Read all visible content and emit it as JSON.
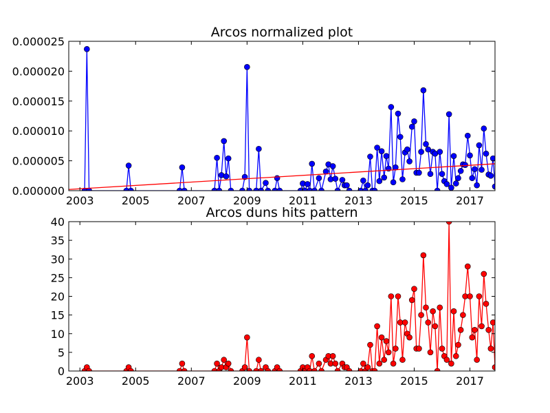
{
  "chart_data": [
    {
      "type": "line",
      "title": "Arcos normalized plot",
      "xlabel": "",
      "ylabel": "",
      "xlim": [
        2002.6,
        2017.9
      ],
      "ylim": [
        0,
        2.5e-05
      ],
      "x_ticks": [
        2003,
        2005,
        2007,
        2009,
        2011,
        2013,
        2015,
        2017
      ],
      "x_tick_labels": [
        "2003",
        "2005",
        "2007",
        "2009",
        "2011",
        "2013",
        "2015",
        "2017"
      ],
      "y_ticks": [
        0,
        5e-06,
        1e-05,
        1.5e-05,
        2e-05,
        2.5e-05
      ],
      "y_tick_labels": [
        "0.000000",
        "0.000005",
        "0.000010",
        "0.000015",
        "0.000020",
        "0.000025"
      ],
      "grid": false,
      "series": [
        {
          "color": "#0000ff",
          "marker": "circle",
          "points": [
            [
              2003.17,
              0
            ],
            [
              2003.25,
              2.37e-05
            ],
            [
              2003.33,
              0
            ],
            [
              2004.67,
              0
            ],
            [
              2004.75,
              4.2e-06
            ],
            [
              2004.83,
              0
            ],
            [
              2006.58,
              0
            ],
            [
              2006.67,
              3.9e-06
            ],
            [
              2006.75,
              0
            ],
            [
              2007.83,
              0
            ],
            [
              2007.92,
              5.5e-06
            ],
            [
              2008.0,
              0
            ],
            [
              2008.08,
              2.6e-06
            ],
            [
              2008.17,
              8.3e-06
            ],
            [
              2008.25,
              2.4e-06
            ],
            [
              2008.33,
              5.4e-06
            ],
            [
              2008.42,
              0
            ],
            [
              2008.83,
              0
            ],
            [
              2008.92,
              2.3e-06
            ],
            [
              2009.0,
              2.07e-05
            ],
            [
              2009.08,
              0
            ],
            [
              2009.33,
              0
            ],
            [
              2009.42,
              7e-06
            ],
            [
              2009.5,
              0
            ],
            [
              2009.67,
              1.3e-06
            ],
            [
              2009.75,
              0
            ],
            [
              2010.0,
              0
            ],
            [
              2010.08,
              2.1e-06
            ],
            [
              2010.17,
              0
            ],
            [
              2010.92,
              0
            ],
            [
              2011.0,
              1.2e-06
            ],
            [
              2011.08,
              0
            ],
            [
              2011.17,
              1.1e-06
            ],
            [
              2011.25,
              0
            ],
            [
              2011.33,
              4.5e-06
            ],
            [
              2011.42,
              0
            ],
            [
              2011.58,
              2.1e-06
            ],
            [
              2011.67,
              0
            ],
            [
              2011.83,
              3.2e-06
            ],
            [
              2011.92,
              4.4e-06
            ],
            [
              2012.0,
              1.9e-06
            ],
            [
              2012.08,
              4.1e-06
            ],
            [
              2012.17,
              2e-06
            ],
            [
              2012.25,
              0
            ],
            [
              2012.42,
              1.8e-06
            ],
            [
              2012.5,
              9e-07
            ],
            [
              2012.58,
              9e-07
            ],
            [
              2012.67,
              0
            ],
            [
              2013.08,
              0
            ],
            [
              2013.17,
              1.7e-06
            ],
            [
              2013.25,
              0
            ],
            [
              2013.33,
              9e-07
            ],
            [
              2013.42,
              5.7e-06
            ],
            [
              2013.5,
              0
            ],
            [
              2013.58,
              0
            ],
            [
              2013.67,
              7.2e-06
            ],
            [
              2013.75,
              1.6e-06
            ],
            [
              2013.83,
              6.6e-06
            ],
            [
              2013.92,
              2.2e-06
            ],
            [
              2014.0,
              5.8e-06
            ],
            [
              2014.08,
              3.7e-06
            ],
            [
              2014.17,
              1.4e-05
            ],
            [
              2014.25,
              1.4e-06
            ],
            [
              2014.33,
              3.9e-06
            ],
            [
              2014.42,
              1.29e-05
            ],
            [
              2014.5,
              9e-06
            ],
            [
              2014.58,
              1.9e-06
            ],
            [
              2014.67,
              6.4e-06
            ],
            [
              2014.75,
              6.9e-06
            ],
            [
              2014.83,
              4.9e-06
            ],
            [
              2014.92,
              1.07e-05
            ],
            [
              2015.0,
              1.16e-05
            ],
            [
              2015.08,
              3e-06
            ],
            [
              2015.17,
              3e-06
            ],
            [
              2015.25,
              6.5e-06
            ],
            [
              2015.33,
              1.68e-05
            ],
            [
              2015.42,
              7.8e-06
            ],
            [
              2015.5,
              6.9e-06
            ],
            [
              2015.58,
              2.8e-06
            ],
            [
              2015.67,
              6.5e-06
            ],
            [
              2015.75,
              6.2e-06
            ],
            [
              2015.83,
              0
            ],
            [
              2015.92,
              6.5e-06
            ],
            [
              2016.0,
              2.8e-06
            ],
            [
              2016.08,
              1.6e-06
            ],
            [
              2016.17,
              1.1e-06
            ],
            [
              2016.25,
              1.28e-05
            ],
            [
              2016.33,
              5e-07
            ],
            [
              2016.42,
              5.8e-06
            ],
            [
              2016.5,
              1.2e-06
            ],
            [
              2016.58,
              2.1e-06
            ],
            [
              2016.67,
              3.3e-06
            ],
            [
              2016.75,
              4.4e-06
            ],
            [
              2016.83,
              4.3e-06
            ],
            [
              2016.92,
              9.2e-06
            ],
            [
              2017.0,
              5.9e-06
            ],
            [
              2017.08,
              2.1e-06
            ],
            [
              2017.17,
              3.6e-06
            ],
            [
              2017.25,
              9e-07
            ],
            [
              2017.33,
              7.6e-06
            ],
            [
              2017.42,
              3.5e-06
            ],
            [
              2017.5,
              1.04e-05
            ],
            [
              2017.58,
              6.2e-06
            ],
            [
              2017.67,
              2.7e-06
            ],
            [
              2017.75,
              2.5e-06
            ],
            [
              2017.83,
              5.4e-06
            ],
            [
              2017.9,
              7e-07
            ]
          ]
        },
        {
          "color": "#ff0000",
          "marker": "none",
          "points": [
            [
              2002.6,
              2e-07
            ],
            [
              2017.9,
              4.5e-06
            ]
          ]
        }
      ]
    },
    {
      "type": "line",
      "title": "Arcos duns hits pattern",
      "xlabel": "",
      "ylabel": "",
      "xlim": [
        2002.6,
        2017.9
      ],
      "ylim": [
        0,
        40
      ],
      "x_ticks": [
        2003,
        2005,
        2007,
        2009,
        2011,
        2013,
        2015,
        2017
      ],
      "x_tick_labels": [
        "2003",
        "2005",
        "2007",
        "2009",
        "2011",
        "2013",
        "2015",
        "2017"
      ],
      "y_ticks": [
        0,
        5,
        10,
        15,
        20,
        25,
        30,
        35,
        40
      ],
      "y_tick_labels": [
        "0",
        "5",
        "10",
        "15",
        "20",
        "25",
        "30",
        "35",
        "40"
      ],
      "grid": false,
      "series": [
        {
          "color": "#ff0000",
          "marker": "circle",
          "points": [
            [
              2003.17,
              0
            ],
            [
              2003.25,
              1
            ],
            [
              2003.33,
              0
            ],
            [
              2004.67,
              0
            ],
            [
              2004.75,
              1
            ],
            [
              2004.83,
              0
            ],
            [
              2006.58,
              0
            ],
            [
              2006.67,
              2
            ],
            [
              2006.75,
              0
            ],
            [
              2007.83,
              0
            ],
            [
              2007.92,
              2
            ],
            [
              2008.0,
              0
            ],
            [
              2008.08,
              1
            ],
            [
              2008.17,
              3
            ],
            [
              2008.25,
              1
            ],
            [
              2008.33,
              2
            ],
            [
              2008.42,
              0
            ],
            [
              2008.83,
              0
            ],
            [
              2008.92,
              1
            ],
            [
              2009.0,
              9
            ],
            [
              2009.08,
              0
            ],
            [
              2009.33,
              0
            ],
            [
              2009.42,
              3
            ],
            [
              2009.5,
              0
            ],
            [
              2009.67,
              1
            ],
            [
              2009.75,
              0
            ],
            [
              2010.0,
              0
            ],
            [
              2010.08,
              1
            ],
            [
              2010.17,
              0
            ],
            [
              2010.92,
              0
            ],
            [
              2011.0,
              1
            ],
            [
              2011.08,
              0
            ],
            [
              2011.17,
              1
            ],
            [
              2011.25,
              0
            ],
            [
              2011.33,
              4
            ],
            [
              2011.42,
              0
            ],
            [
              2011.58,
              2
            ],
            [
              2011.67,
              0
            ],
            [
              2011.83,
              3
            ],
            [
              2011.92,
              4
            ],
            [
              2012.0,
              2
            ],
            [
              2012.08,
              4
            ],
            [
              2012.17,
              2
            ],
            [
              2012.25,
              0
            ],
            [
              2012.42,
              2
            ],
            [
              2012.5,
              1
            ],
            [
              2012.58,
              1
            ],
            [
              2012.67,
              0
            ],
            [
              2013.08,
              0
            ],
            [
              2013.17,
              2
            ],
            [
              2013.25,
              0
            ],
            [
              2013.33,
              1
            ],
            [
              2013.42,
              7
            ],
            [
              2013.5,
              0
            ],
            [
              2013.58,
              0
            ],
            [
              2013.67,
              12
            ],
            [
              2013.75,
              2
            ],
            [
              2013.83,
              9
            ],
            [
              2013.92,
              3
            ],
            [
              2014.0,
              8
            ],
            [
              2014.08,
              5
            ],
            [
              2014.17,
              20
            ],
            [
              2014.25,
              2
            ],
            [
              2014.33,
              6
            ],
            [
              2014.42,
              20
            ],
            [
              2014.5,
              13
            ],
            [
              2014.58,
              3
            ],
            [
              2014.67,
              13
            ],
            [
              2014.75,
              10
            ],
            [
              2014.83,
              9
            ],
            [
              2014.92,
              19
            ],
            [
              2015.0,
              22
            ],
            [
              2015.08,
              6
            ],
            [
              2015.17,
              6
            ],
            [
              2015.25,
              15
            ],
            [
              2015.33,
              31
            ],
            [
              2015.42,
              17
            ],
            [
              2015.5,
              13
            ],
            [
              2015.58,
              5
            ],
            [
              2015.67,
              16
            ],
            [
              2015.75,
              12
            ],
            [
              2015.83,
              0
            ],
            [
              2015.92,
              17
            ],
            [
              2016.0,
              6
            ],
            [
              2016.08,
              4
            ],
            [
              2016.17,
              3
            ],
            [
              2016.25,
              40
            ],
            [
              2016.33,
              2
            ],
            [
              2016.42,
              16
            ],
            [
              2016.5,
              4
            ],
            [
              2016.58,
              7
            ],
            [
              2016.67,
              11
            ],
            [
              2016.75,
              15
            ],
            [
              2016.83,
              20
            ],
            [
              2016.92,
              28
            ],
            [
              2017.0,
              20
            ],
            [
              2017.08,
              9
            ],
            [
              2017.17,
              11
            ],
            [
              2017.25,
              3
            ],
            [
              2017.33,
              20
            ],
            [
              2017.42,
              12
            ],
            [
              2017.5,
              26
            ],
            [
              2017.58,
              18
            ],
            [
              2017.67,
              11
            ],
            [
              2017.75,
              6
            ],
            [
              2017.83,
              13
            ],
            [
              2017.9,
              1
            ]
          ]
        }
      ]
    }
  ]
}
